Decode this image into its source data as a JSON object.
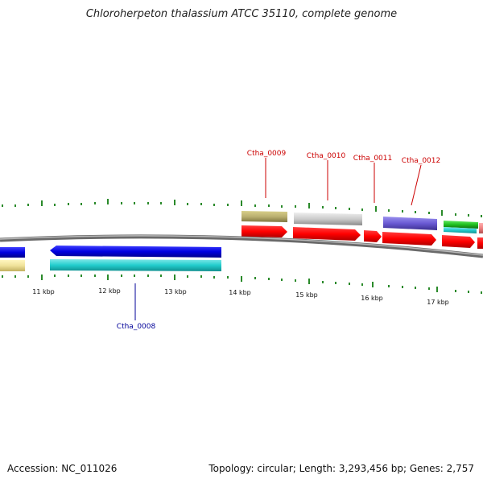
{
  "title": "Chloroherpeton thalassium ATCC 35110, complete genome",
  "footer": {
    "accession": "Accession: NC_011026",
    "summary": "Topology: circular; Length: 3,293,456 bp; Genes: 2,757"
  },
  "kbp_labels": [
    "11 kbp",
    "12 kbp",
    "13 kbp",
    "14 kbp",
    "15 kbp",
    "16 kbp",
    "17 kbp"
  ],
  "gene_labels": {
    "ctha_0008": "Ctha_0008",
    "ctha_0009": "Ctha_0009",
    "ctha_0010": "Ctha_0010",
    "ctha_0011": "Ctha_0011",
    "ctha_0012": "Ctha_0012"
  },
  "colors": {
    "cds_forward": "#ff0000",
    "cds_reverse": "#1010e0",
    "teal": "#20cccc",
    "tick": "#2a8a2a"
  }
}
